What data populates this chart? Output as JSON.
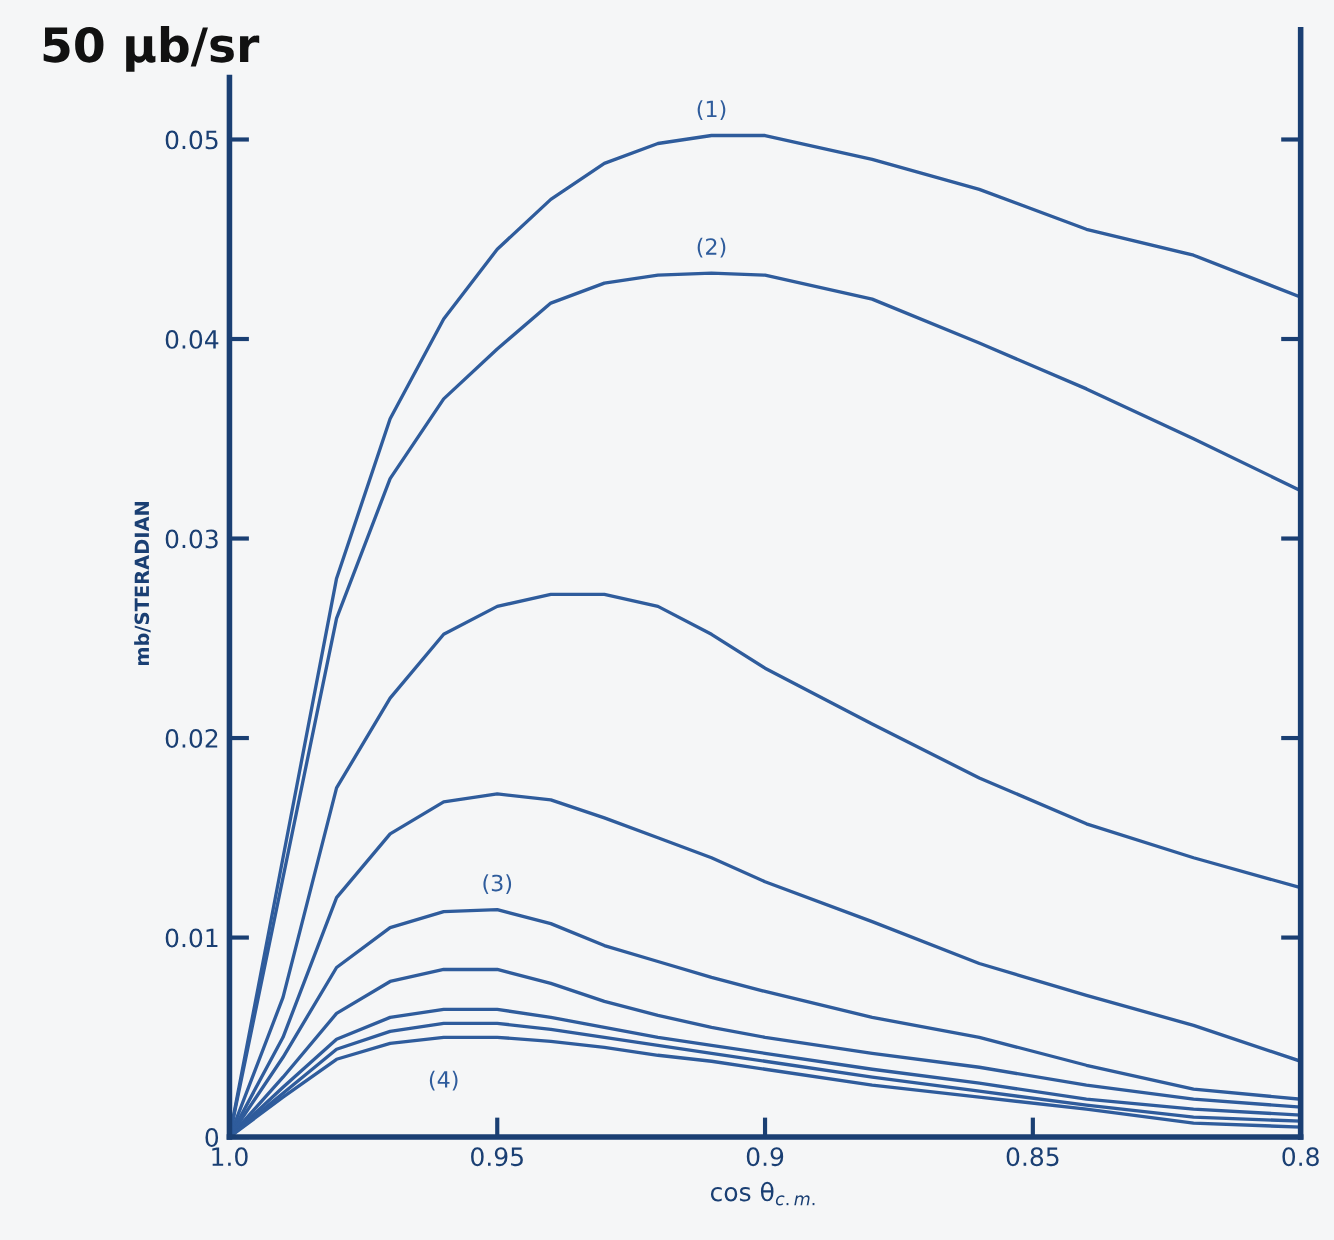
{
  "chart_data": {
    "type": "line",
    "title": "50 μb/sr",
    "xlabel": "cos θ$_{c.m.}$",
    "ylabel": "mb/STERADIAN",
    "x": [
      1.0,
      0.99,
      0.98,
      0.97,
      0.96,
      0.95,
      0.94,
      0.93,
      0.92,
      0.91,
      0.9,
      0.88,
      0.86,
      0.84,
      0.82,
      0.8
    ],
    "series": [
      {
        "name": "(1)",
        "color": "#2f5c9c",
        "values": [
          0,
          0.014,
          0.028,
          0.036,
          0.041,
          0.0445,
          0.047,
          0.0488,
          0.0498,
          0.0502,
          0.0502,
          0.049,
          0.0475,
          0.0455,
          0.0442,
          0.0421
        ]
      },
      {
        "name": "(2)",
        "color": "#2f5c9c",
        "values": [
          0,
          0.013,
          0.026,
          0.033,
          0.037,
          0.0395,
          0.0418,
          0.0428,
          0.0432,
          0.0433,
          0.0432,
          0.042,
          0.0398,
          0.0375,
          0.035,
          0.0324
        ]
      },
      {
        "color": "#2f5c9c",
        "values": [
          0,
          0.007,
          0.0175,
          0.022,
          0.0252,
          0.0266,
          0.0272,
          0.0272,
          0.0266,
          0.0252,
          0.0235,
          0.0207,
          0.018,
          0.0157,
          0.014,
          0.0125
        ]
      },
      {
        "color": "#2f5c9c",
        "values": [
          0,
          0.005,
          0.012,
          0.0152,
          0.0168,
          0.0172,
          0.0169,
          0.016,
          0.015,
          0.014,
          0.0128,
          0.0108,
          0.0087,
          0.0071,
          0.0056,
          0.0038
        ]
      },
      {
        "name": "(3)",
        "color": "#2f5c9c",
        "values": [
          0,
          0.004,
          0.0085,
          0.0105,
          0.0113,
          0.0114,
          0.0107,
          0.0096,
          0.0088,
          0.008,
          0.0073,
          0.006,
          0.005,
          0.0036,
          0.0024,
          0.0019
        ]
      },
      {
        "color": "#2f5c9c",
        "values": [
          0,
          0.003,
          0.0062,
          0.0078,
          0.0084,
          0.0084,
          0.0077,
          0.0068,
          0.0061,
          0.0055,
          0.005,
          0.0042,
          0.0035,
          0.0026,
          0.0019,
          0.0015
        ]
      },
      {
        "color": "#2f5c9c",
        "values": [
          0,
          0.0025,
          0.0049,
          0.006,
          0.0064,
          0.0064,
          0.006,
          0.0055,
          0.005,
          0.0046,
          0.0042,
          0.0034,
          0.0027,
          0.0019,
          0.0014,
          0.0011
        ]
      },
      {
        "color": "#2f5c9c",
        "values": [
          0,
          0.0022,
          0.0044,
          0.0053,
          0.0057,
          0.0057,
          0.0054,
          0.005,
          0.0046,
          0.0042,
          0.0038,
          0.003,
          0.0023,
          0.0016,
          0.001,
          0.0008
        ]
      },
      {
        "name": "(4)",
        "color": "#2f5c9c",
        "values": [
          0,
          0.002,
          0.0039,
          0.0047,
          0.005,
          0.005,
          0.0048,
          0.0045,
          0.0041,
          0.0038,
          0.0034,
          0.0026,
          0.002,
          0.0014,
          0.0007,
          0.0005
        ]
      }
    ],
    "xlim": [
      1.0,
      0.8
    ],
    "xticks": [
      {
        "value": 1,
        "label": "1.0"
      },
      0.95,
      0.9,
      0.85,
      0.8
    ],
    "ylim": [
      0,
      0.0555
    ],
    "yticks": [
      0,
      0.01,
      0.02,
      0.03,
      0.04,
      0.05
    ],
    "marker": "none",
    "line_style": "solid",
    "grid": false,
    "legend": false
  }
}
